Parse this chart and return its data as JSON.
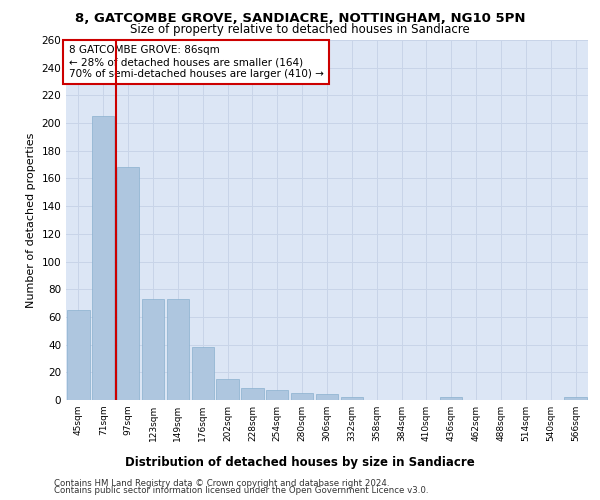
{
  "title1": "8, GATCOMBE GROVE, SANDIACRE, NOTTINGHAM, NG10 5PN",
  "title2": "Size of property relative to detached houses in Sandiacre",
  "xlabel": "Distribution of detached houses by size in Sandiacre",
  "ylabel": "Number of detached properties",
  "categories": [
    "45sqm",
    "71sqm",
    "97sqm",
    "123sqm",
    "149sqm",
    "176sqm",
    "202sqm",
    "228sqm",
    "254sqm",
    "280sqm",
    "306sqm",
    "332sqm",
    "358sqm",
    "384sqm",
    "410sqm",
    "436sqm",
    "462sqm",
    "488sqm",
    "514sqm",
    "540sqm",
    "566sqm"
  ],
  "values": [
    65,
    205,
    168,
    73,
    73,
    38,
    15,
    9,
    7,
    5,
    4,
    2,
    0,
    0,
    0,
    2,
    0,
    0,
    0,
    0,
    2
  ],
  "bar_color": "#aec6df",
  "bar_edge_color": "#8ab0cf",
  "vline_x": 1.5,
  "vline_color": "#cc0000",
  "annotation_text": "8 GATCOMBE GROVE: 86sqm\n← 28% of detached houses are smaller (164)\n70% of semi-detached houses are larger (410) →",
  "annotation_box_color": "#ffffff",
  "annotation_box_edge": "#cc0000",
  "ylim": [
    0,
    260
  ],
  "yticks": [
    0,
    20,
    40,
    60,
    80,
    100,
    120,
    140,
    160,
    180,
    200,
    220,
    240,
    260
  ],
  "grid_color": "#c8d4e8",
  "background_color": "#dce6f5",
  "footer1": "Contains HM Land Registry data © Crown copyright and database right 2024.",
  "footer2": "Contains public sector information licensed under the Open Government Licence v3.0."
}
